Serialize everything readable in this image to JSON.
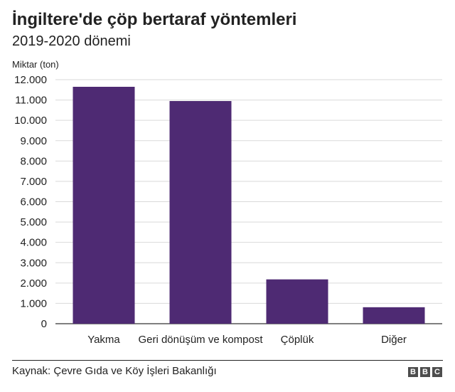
{
  "title": "İngiltere'de çöp bertaraf yöntemleri",
  "subtitle": "2019-2020 dönemi",
  "source": "Kaynak: Çevre Gıda ve Köy İşleri Bakanlığı",
  "logo_letters": [
    "B",
    "B",
    "C"
  ],
  "colors": {
    "bar": "#4e2a73",
    "grid": "#d9d9d9",
    "axis": "#333333",
    "text": "#222222"
  },
  "chart_data": {
    "type": "bar",
    "title": "İngiltere'de çöp bertaraf yöntemleri",
    "subtitle": "2019-2020 dönemi",
    "ylabel": "Miktar (ton)",
    "xlabel": "",
    "categories": [
      "Yakma",
      "Geri dönüşüm ve kompost",
      "Çöplük",
      "Diğer"
    ],
    "values": [
      11650,
      10950,
      2180,
      810
    ],
    "ylim": [
      0,
      12000
    ],
    "yticks": [
      0,
      1000,
      2000,
      3000,
      4000,
      5000,
      6000,
      7000,
      8000,
      9000,
      10000,
      11000,
      12000
    ],
    "ytick_labels": [
      "0",
      "1.000",
      "2.000",
      "3.000",
      "4.000",
      "5.000",
      "6.000",
      "7.000",
      "8.000",
      "9.000",
      "10.000",
      "11.000",
      "12.000"
    ],
    "grid": true,
    "legend": "none"
  }
}
